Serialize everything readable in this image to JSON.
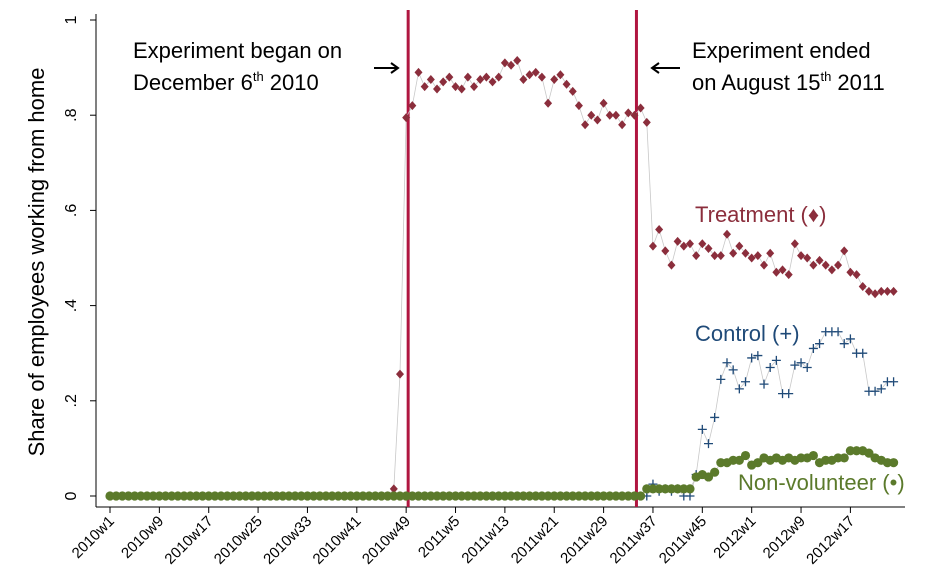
{
  "chart_data": {
    "type": "line",
    "y_label": "Share of employees working from home",
    "categories": [
      "2010w1",
      null,
      null,
      null,
      null,
      null,
      null,
      null,
      "2010w9",
      null,
      null,
      null,
      null,
      null,
      null,
      null,
      "2010w17",
      null,
      null,
      null,
      null,
      null,
      null,
      null,
      "2010w25",
      null,
      null,
      null,
      null,
      null,
      null,
      null,
      "2010w33",
      null,
      null,
      null,
      null,
      null,
      null,
      null,
      "2010w41",
      null,
      null,
      null,
      null,
      null,
      null,
      null,
      "2010w49",
      null,
      null,
      null,
      null,
      null,
      null,
      null,
      "2011w5",
      null,
      null,
      null,
      null,
      null,
      null,
      null,
      "2011w13",
      null,
      null,
      null,
      null,
      null,
      null,
      null,
      "2011w21",
      null,
      null,
      null,
      null,
      null,
      null,
      null,
      "2011w29",
      null,
      null,
      null,
      null,
      null,
      null,
      null,
      "2011w37",
      null,
      null,
      null,
      null,
      null,
      null,
      null,
      "2011w45",
      null,
      null,
      null,
      null,
      null,
      null,
      null,
      "2012w1",
      null,
      null,
      null,
      null,
      null,
      null,
      null,
      "2012w9",
      null,
      null,
      null,
      null,
      null,
      null,
      null,
      "2012w17",
      null,
      null,
      null,
      null,
      null,
      null,
      null
    ],
    "ylim": [
      0,
      1
    ],
    "yticks": [
      0,
      {
        "value": 0.2,
        "label": ".2"
      },
      {
        "value": 0.4,
        "label": ".4"
      },
      {
        "value": 0.6,
        "label": ".6"
      },
      {
        "value": 0.8,
        "label": ".8"
      },
      1
    ],
    "series": [
      {
        "name": "Treatment (♦)",
        "color": "#8b2e3c",
        "marker": "diamond",
        "values": [
          0,
          0,
          0,
          0,
          0,
          0,
          0,
          0,
          0,
          0,
          0,
          0,
          0,
          0,
          0,
          0,
          0,
          0,
          0,
          0,
          0,
          0,
          0,
          0,
          0,
          0,
          0,
          0,
          0,
          0,
          0,
          0,
          0,
          0,
          0,
          0,
          0,
          0,
          0,
          0,
          0,
          0,
          0,
          0,
          0,
          0,
          0.015,
          0.256,
          0.795,
          0.82,
          0.89,
          0.86,
          0.875,
          0.855,
          0.87,
          0.88,
          0.86,
          0.855,
          0.88,
          0.86,
          0.875,
          0.88,
          0.87,
          0.88,
          0.91,
          0.905,
          0.915,
          0.875,
          0.885,
          0.89,
          0.88,
          0.825,
          0.875,
          0.885,
          0.865,
          0.85,
          0.82,
          0.78,
          0.8,
          0.79,
          0.825,
          0.8,
          0.8,
          0.78,
          0.805,
          0.8,
          0.815,
          0.785,
          0.525,
          0.56,
          0.515,
          0.485,
          0.535,
          0.525,
          0.53,
          0.505,
          0.53,
          0.52,
          0.505,
          0.505,
          0.55,
          0.51,
          0.525,
          0.51,
          0.5,
          0.505,
          0.485,
          0.51,
          0.47,
          0.475,
          0.465,
          0.53,
          0.505,
          0.5,
          0.485,
          0.495,
          0.485,
          0.475,
          0.485,
          0.515,
          0.47,
          0.465,
          0.44,
          0.43,
          0.425,
          0.43,
          0.43,
          0.43
        ]
      },
      {
        "name": "Control (+)",
        "color": "#1f4a78",
        "marker": "plus",
        "values": [
          0,
          0,
          0,
          0,
          0,
          0,
          0,
          0,
          0,
          0,
          0,
          0,
          0,
          0,
          0,
          0,
          0,
          0,
          0,
          0,
          0,
          0,
          0,
          0,
          0,
          0,
          0,
          0,
          0,
          0,
          0,
          0,
          0,
          0,
          0,
          0,
          0,
          0,
          0,
          0,
          0,
          0,
          0,
          0,
          0,
          0,
          0,
          0,
          0,
          0,
          0,
          0,
          0,
          0,
          0,
          0,
          0,
          0,
          0,
          0,
          0,
          0,
          0,
          0,
          0,
          0,
          0,
          0,
          0,
          0,
          0,
          0,
          0,
          0,
          0,
          0,
          0,
          0,
          0,
          0,
          0,
          0,
          0,
          0,
          0,
          0,
          0,
          0,
          0.025,
          0.01,
          0.015,
          0.01,
          0.015,
          0,
          0,
          0.045,
          0.14,
          0.11,
          0.165,
          0.245,
          0.28,
          0.265,
          0.225,
          0.24,
          0.29,
          0.295,
          0.235,
          0.27,
          0.285,
          0.215,
          0.215,
          0.275,
          0.28,
          0.27,
          0.31,
          0.32,
          0.345,
          0.345,
          0.345,
          0.32,
          0.33,
          0.3,
          0.3,
          0.22,
          0.22,
          0.225,
          0.24,
          0.24
        ]
      },
      {
        "name": "Non-volunteer (•)",
        "color": "#5b7a2b",
        "marker": "circle",
        "values": [
          0,
          0,
          0,
          0,
          0,
          0,
          0,
          0,
          0,
          0,
          0,
          0,
          0,
          0,
          0,
          0,
          0,
          0,
          0,
          0,
          0,
          0,
          0,
          0,
          0,
          0,
          0,
          0,
          0,
          0,
          0,
          0,
          0,
          0,
          0,
          0,
          0,
          0,
          0,
          0,
          0,
          0,
          0,
          0,
          0,
          0,
          0,
          0,
          0,
          0,
          0,
          0,
          0,
          0,
          0,
          0,
          0,
          0,
          0,
          0,
          0,
          0,
          0,
          0,
          0,
          0,
          0,
          0,
          0,
          0,
          0,
          0,
          0,
          0,
          0,
          0,
          0,
          0,
          0,
          0,
          0,
          0,
          0,
          0,
          0,
          0,
          0,
          0.015,
          0.015,
          0.015,
          0.015,
          0.015,
          0.015,
          0.015,
          0.015,
          0.04,
          0.045,
          0.04,
          0.05,
          0.07,
          0.07,
          0.075,
          0.075,
          0.085,
          0.065,
          0.07,
          0.08,
          0.075,
          0.08,
          0.075,
          0.08,
          0.075,
          0.08,
          0.08,
          0.085,
          0.07,
          0.075,
          0.075,
          0.08,
          0.08,
          0.095,
          0.095,
          0.095,
          0.09,
          0.08,
          0.075,
          0.07,
          0.07
        ]
      }
    ],
    "events": [
      {
        "at": 48,
        "color": "#b01640",
        "line1": "Experiment began on",
        "line2": "December 6",
        "sup": "th",
        "tail": " 2010"
      },
      {
        "at": 85,
        "color": "#b01640",
        "line1": "Experiment ended",
        "line2": "on August 15",
        "sup": "th",
        "tail": " 2011"
      }
    ]
  }
}
